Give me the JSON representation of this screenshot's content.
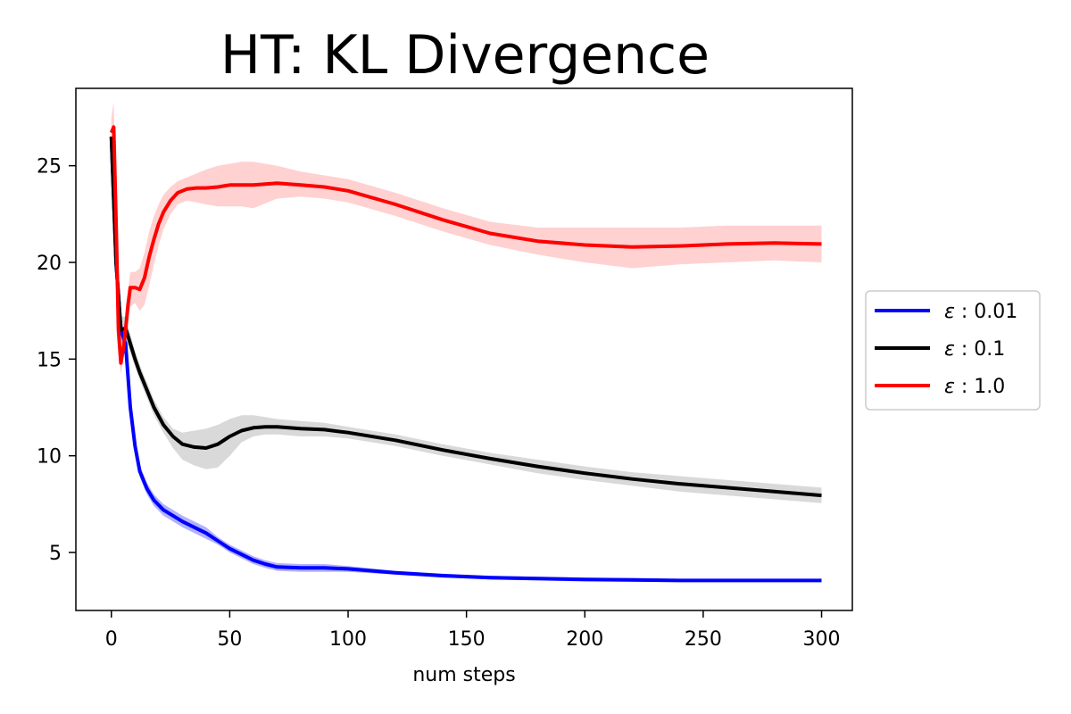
{
  "chart_data": {
    "type": "line",
    "title": "HT: KL Divergence",
    "xlabel": "num steps",
    "ylabel": "",
    "xlim": [
      -15,
      313
    ],
    "ylim": [
      2,
      29
    ],
    "xticks": [
      0,
      50,
      100,
      150,
      200,
      250,
      300
    ],
    "yticks": [
      5,
      10,
      15,
      20,
      25
    ],
    "grid": false,
    "legend_position": "center-right-outside",
    "series": [
      {
        "name": "ε: 0.01",
        "legend_prefix": "ε",
        "legend_value": "0.01",
        "color": "#0000ff",
        "band_color": "#0000ff",
        "x": [
          0,
          2,
          4,
          6,
          8,
          10,
          12,
          15,
          18,
          22,
          26,
          30,
          35,
          40,
          45,
          50,
          55,
          60,
          65,
          70,
          80,
          90,
          100,
          120,
          140,
          160,
          180,
          200,
          220,
          240,
          260,
          280,
          300
        ],
        "y": [
          26.5,
          20.0,
          16.5,
          15.8,
          12.5,
          10.5,
          9.2,
          8.3,
          7.7,
          7.2,
          6.9,
          6.6,
          6.3,
          6.0,
          5.6,
          5.2,
          4.9,
          4.6,
          4.4,
          4.25,
          4.2,
          4.2,
          4.15,
          3.95,
          3.8,
          3.7,
          3.65,
          3.6,
          3.58,
          3.55,
          3.55,
          3.55,
          3.55
        ],
        "lower": [
          26.3,
          19.6,
          16.0,
          15.2,
          12.0,
          10.1,
          8.9,
          8.0,
          7.4,
          6.9,
          6.6,
          6.3,
          6.0,
          5.7,
          5.4,
          5.0,
          4.7,
          4.4,
          4.2,
          4.05,
          4.0,
          4.0,
          4.0,
          3.85,
          3.7,
          3.6,
          3.55,
          3.5,
          3.48,
          3.47,
          3.47,
          3.47,
          3.47
        ],
        "upper": [
          26.7,
          20.4,
          17.0,
          16.4,
          13.0,
          10.9,
          9.5,
          8.6,
          8.0,
          7.5,
          7.2,
          6.9,
          6.6,
          6.3,
          5.8,
          5.4,
          5.1,
          4.8,
          4.6,
          4.45,
          4.4,
          4.4,
          4.3,
          4.05,
          3.9,
          3.8,
          3.75,
          3.7,
          3.68,
          3.63,
          3.63,
          3.63,
          3.63
        ]
      },
      {
        "name": "ε: 0.1",
        "legend_prefix": "ε",
        "legend_value": "0.1",
        "color": "#000000",
        "band_color": "#808080",
        "x": [
          0,
          2,
          4,
          6,
          8,
          10,
          12,
          15,
          18,
          22,
          26,
          30,
          35,
          40,
          45,
          50,
          55,
          60,
          65,
          70,
          80,
          90,
          100,
          120,
          140,
          160,
          180,
          200,
          220,
          240,
          260,
          280,
          300
        ],
        "y": [
          26.5,
          20.0,
          16.5,
          16.6,
          15.8,
          15.0,
          14.3,
          13.4,
          12.5,
          11.6,
          11.0,
          10.6,
          10.45,
          10.4,
          10.6,
          11.0,
          11.3,
          11.45,
          11.5,
          11.5,
          11.4,
          11.35,
          11.2,
          10.8,
          10.3,
          9.85,
          9.45,
          9.1,
          8.8,
          8.55,
          8.35,
          8.15,
          7.95
        ],
        "lower": [
          26.3,
          19.6,
          16.0,
          16.0,
          15.3,
          14.6,
          13.9,
          13.0,
          12.1,
          11.2,
          10.4,
          9.8,
          9.5,
          9.3,
          9.4,
          10.0,
          10.7,
          11.0,
          11.1,
          11.1,
          11.0,
          11.0,
          10.9,
          10.5,
          10.0,
          9.55,
          9.1,
          8.75,
          8.45,
          8.15,
          7.95,
          7.75,
          7.55
        ],
        "upper": [
          26.7,
          20.4,
          17.2,
          17.2,
          16.3,
          15.4,
          14.7,
          13.8,
          12.9,
          12.0,
          11.4,
          11.2,
          11.3,
          11.4,
          11.6,
          11.9,
          12.1,
          12.1,
          12.0,
          11.9,
          11.8,
          11.7,
          11.5,
          11.1,
          10.6,
          10.15,
          9.8,
          9.45,
          9.15,
          8.95,
          8.75,
          8.55,
          8.35
        ]
      },
      {
        "name": "ε: 1.0",
        "legend_prefix": "ε",
        "legend_value": "1.0",
        "color": "#ff0000",
        "band_color": "#ff6666",
        "x": [
          0,
          1,
          2,
          3,
          4,
          5,
          6,
          7,
          8,
          10,
          12,
          14,
          16,
          18,
          20,
          22,
          25,
          28,
          32,
          36,
          40,
          45,
          50,
          55,
          60,
          70,
          80,
          90,
          100,
          120,
          140,
          160,
          180,
          200,
          220,
          240,
          260,
          280,
          300
        ],
        "y": [
          26.7,
          27.0,
          22.0,
          16.5,
          14.8,
          15.5,
          16.5,
          17.8,
          18.7,
          18.7,
          18.6,
          19.2,
          20.3,
          21.2,
          22.0,
          22.6,
          23.2,
          23.6,
          23.8,
          23.85,
          23.85,
          23.9,
          24.0,
          24.0,
          24.0,
          24.1,
          24.0,
          23.9,
          23.7,
          23.0,
          22.2,
          21.5,
          21.1,
          20.9,
          20.8,
          20.85,
          20.95,
          21.0,
          20.95
        ],
        "lower": [
          25.7,
          25.8,
          21.0,
          15.5,
          14.2,
          14.9,
          15.8,
          17.0,
          17.7,
          17.9,
          17.5,
          17.8,
          18.8,
          19.9,
          20.9,
          21.7,
          22.5,
          23.0,
          23.2,
          23.1,
          23.0,
          22.9,
          22.9,
          22.9,
          22.8,
          23.3,
          23.4,
          23.3,
          23.1,
          22.4,
          21.6,
          20.9,
          20.4,
          20.0,
          19.7,
          19.9,
          20.0,
          20.1,
          20.0
        ],
        "upper": [
          27.5,
          28.3,
          23.0,
          17.5,
          15.4,
          16.1,
          17.2,
          18.6,
          19.5,
          19.5,
          19.7,
          20.5,
          21.6,
          22.4,
          23.0,
          23.5,
          23.9,
          24.2,
          24.4,
          24.6,
          24.8,
          25.0,
          25.1,
          25.2,
          25.2,
          25.0,
          24.7,
          24.5,
          24.3,
          23.6,
          22.8,
          22.1,
          21.8,
          21.8,
          21.8,
          21.8,
          21.9,
          21.9,
          21.9
        ]
      }
    ]
  }
}
